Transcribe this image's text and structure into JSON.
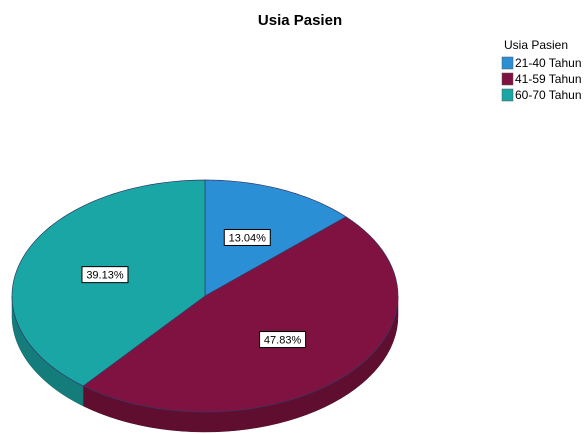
{
  "chart_data": {
    "type": "pie",
    "title": "Usia Pasien",
    "legend_title": "Usia Pasien",
    "categories": [
      "21-40 Tahun",
      "41-59 Tahun",
      "60-70 Tahun"
    ],
    "values": [
      13.04,
      47.83,
      39.13
    ],
    "value_labels": [
      "13.04%",
      "47.83%",
      "39.13%"
    ],
    "colors": [
      "#2b8fd6",
      "#7f1240",
      "#1aa6a4"
    ],
    "legend": "top-right"
  }
}
